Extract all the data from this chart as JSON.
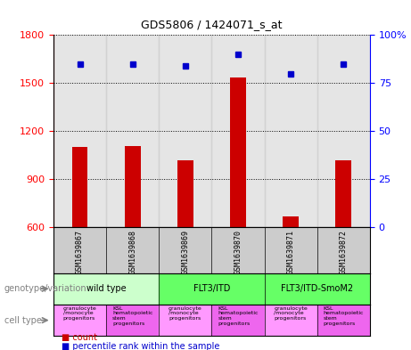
{
  "title": "GDS5806 / 1424071_s_at",
  "samples": [
    "GSM1639867",
    "GSM1639868",
    "GSM1639869",
    "GSM1639870",
    "GSM1639871",
    "GSM1639872"
  ],
  "count_values": [
    1100,
    1105,
    1020,
    1535,
    670,
    1020
  ],
  "percentile_values": [
    85,
    85,
    84,
    90,
    80,
    85
  ],
  "ylim_left": [
    600,
    1800
  ],
  "ylim_right": [
    0,
    100
  ],
  "yticks_left": [
    600,
    900,
    1200,
    1500,
    1800
  ],
  "yticks_right": [
    0,
    25,
    50,
    75,
    100
  ],
  "bar_color": "#cc0000",
  "dot_color": "#0000cc",
  "genotype_groups": [
    {
      "label": "wild type",
      "start": 0,
      "end": 2,
      "color": "#ccffcc"
    },
    {
      "label": "FLT3/ITD",
      "start": 2,
      "end": 4,
      "color": "#66ff66"
    },
    {
      "label": "FLT3/ITD-SmoM2",
      "start": 4,
      "end": 6,
      "color": "#66ff66"
    }
  ],
  "cell_types": [
    {
      "label": "granulocyte/monocyte progenitors",
      "color": "#ff99ff"
    },
    {
      "label": "KSL hematopoietic stem progenitors",
      "color": "#ff66ff"
    },
    {
      "label": "granulocyte/monocyte progenitors",
      "color": "#ff99ff"
    },
    {
      "label": "KSL hematopoietic stem progenitors",
      "color": "#ff66ff"
    },
    {
      "label": "granulocyte/monocyte progenitors",
      "color": "#ff99ff"
    },
    {
      "label": "KSL hematopoietic stem progenitors",
      "color": "#ff66ff"
    }
  ],
  "grid_color": "#000000",
  "grid_style": "dotted",
  "background_color": "#ffffff",
  "sample_bg_color": "#cccccc"
}
